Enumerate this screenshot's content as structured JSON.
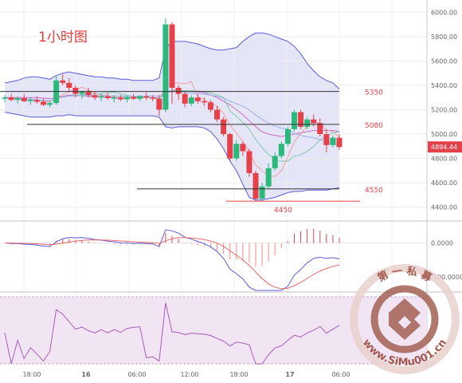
{
  "chart_data": {
    "type": "candlestick",
    "title": "1小时图",
    "price_axis": {
      "ylim": [
        4300,
        6100
      ],
      "ticks": [
        "4400.00",
        "4600.00",
        "4800.00",
        "5000.00",
        "5200.00",
        "5400.00",
        "5600.00",
        "5800.00",
        "6000.00"
      ]
    },
    "current_price": "4894.44",
    "levels": [
      {
        "label": "5350",
        "value": 5350
      },
      {
        "label": "5080",
        "value": 5080
      },
      {
        "label": "4550",
        "value": 4550
      },
      {
        "label": "4450",
        "value": 4450
      }
    ],
    "time_axis": [
      "18:00",
      "16",
      "06:00",
      "12:00",
      "18:00",
      "17",
      "06:00"
    ],
    "candles": [
      [
        5290,
        5320,
        5260,
        5300
      ],
      [
        5300,
        5330,
        5270,
        5280
      ],
      [
        5280,
        5310,
        5250,
        5295
      ],
      [
        5295,
        5330,
        5260,
        5270
      ],
      [
        5270,
        5300,
        5240,
        5280
      ],
      [
        5280,
        5310,
        5250,
        5265
      ],
      [
        5265,
        5290,
        5230,
        5240
      ],
      [
        5240,
        5270,
        5220,
        5255
      ],
      [
        5255,
        5480,
        5240,
        5440
      ],
      [
        5440,
        5490,
        5400,
        5420
      ],
      [
        5420,
        5460,
        5350,
        5380
      ],
      [
        5380,
        5400,
        5300,
        5330
      ],
      [
        5330,
        5360,
        5290,
        5350
      ],
      [
        5350,
        5380,
        5300,
        5320
      ],
      [
        5320,
        5350,
        5280,
        5300
      ],
      [
        5300,
        5330,
        5270,
        5310
      ],
      [
        5310,
        5340,
        5280,
        5295
      ],
      [
        5295,
        5320,
        5260,
        5300
      ],
      [
        5300,
        5320,
        5270,
        5285
      ],
      [
        5285,
        5310,
        5260,
        5305
      ],
      [
        5305,
        5330,
        5280,
        5290
      ],
      [
        5290,
        5320,
        5270,
        5310
      ],
      [
        5310,
        5340,
        5280,
        5300
      ],
      [
        5300,
        5320,
        5270,
        5290
      ],
      [
        5290,
        5320,
        5150,
        5200
      ],
      [
        5200,
        5950,
        5180,
        5900
      ],
      [
        5900,
        5920,
        5250,
        5380
      ],
      [
        5380,
        5400,
        5280,
        5330
      ],
      [
        5330,
        5350,
        5220,
        5250
      ],
      [
        5250,
        5320,
        5230,
        5300
      ],
      [
        5300,
        5330,
        5250,
        5270
      ],
      [
        5270,
        5300,
        5230,
        5260
      ],
      [
        5260,
        5280,
        5180,
        5200
      ],
      [
        5200,
        5230,
        5100,
        5120
      ],
      [
        5120,
        5140,
        4980,
        5000
      ],
      [
        5000,
        5010,
        4780,
        4800
      ],
      [
        4800,
        4950,
        4780,
        4920
      ],
      [
        4920,
        4940,
        4820,
        4860
      ],
      [
        4860,
        4880,
        4650,
        4680
      ],
      [
        4680,
        4700,
        4450,
        4470
      ],
      [
        4470,
        4600,
        4450,
        4570
      ],
      [
        4570,
        4760,
        4550,
        4720
      ],
      [
        4720,
        4850,
        4700,
        4820
      ],
      [
        4820,
        4940,
        4800,
        4920
      ],
      [
        4920,
        5060,
        4900,
        5040
      ],
      [
        5040,
        5200,
        5020,
        5180
      ],
      [
        5180,
        5200,
        5040,
        5060
      ],
      [
        5060,
        5140,
        5040,
        5120
      ],
      [
        5120,
        5160,
        5060,
        5090
      ],
      [
        5090,
        5130,
        4980,
        5000
      ],
      [
        5000,
        5040,
        4850,
        4910
      ],
      [
        4910,
        4990,
        4890,
        4970
      ],
      [
        4970,
        5000,
        4870,
        4894
      ]
    ],
    "bollinger": {
      "upper": [
        5420,
        5430,
        5440,
        5460,
        5470,
        5470,
        5460,
        5450,
        5480,
        5500,
        5510,
        5500,
        5490,
        5480,
        5470,
        5470,
        5460,
        5460,
        5450,
        5450,
        5440,
        5440,
        5440,
        5440,
        5460,
        5700,
        5760,
        5760,
        5760,
        5750,
        5740,
        5720,
        5700,
        5690,
        5690,
        5700,
        5710,
        5760,
        5800,
        5830,
        5830,
        5820,
        5800,
        5780,
        5760,
        5720,
        5660,
        5580,
        5520,
        5470,
        5440,
        5420,
        5370
      ],
      "middle": [
        5300,
        5300,
        5300,
        5300,
        5300,
        5300,
        5295,
        5290,
        5300,
        5310,
        5320,
        5320,
        5315,
        5310,
        5305,
        5305,
        5300,
        5300,
        5300,
        5300,
        5300,
        5300,
        5300,
        5300,
        5295,
        5330,
        5360,
        5360,
        5355,
        5350,
        5345,
        5340,
        5320,
        5300,
        5270,
        5240,
        5200,
        5160,
        5110,
        5060,
        5020,
        5000,
        4990,
        4980,
        4990,
        5000,
        5010,
        5020,
        5030,
        5030,
        5030,
        5030,
        5020
      ],
      "lower": [
        5180,
        5170,
        5160,
        5150,
        5140,
        5140,
        5140,
        5140,
        5150,
        5150,
        5160,
        5150,
        5150,
        5150,
        5150,
        5150,
        5150,
        5150,
        5150,
        5150,
        5150,
        5150,
        5150,
        5150,
        5140,
        5060,
        5050,
        5060,
        5060,
        5060,
        5060,
        5050,
        5020,
        4960,
        4880,
        4780,
        4700,
        4590,
        4480,
        4460,
        4460,
        4470,
        4480,
        4500,
        4520,
        4530,
        4530,
        4540,
        4540,
        4540,
        4540,
        4550,
        4560
      ]
    },
    "macd": {
      "ticks": [
        "0.0000",
        "-100.0000"
      ],
      "ylim": [
        -140,
        60
      ]
    },
    "rsi": {
      "ylim": [
        20,
        85
      ]
    }
  },
  "watermark": {
    "text_top": "第 一 私 募",
    "text_bottom": "www.SiMu001.cn"
  }
}
